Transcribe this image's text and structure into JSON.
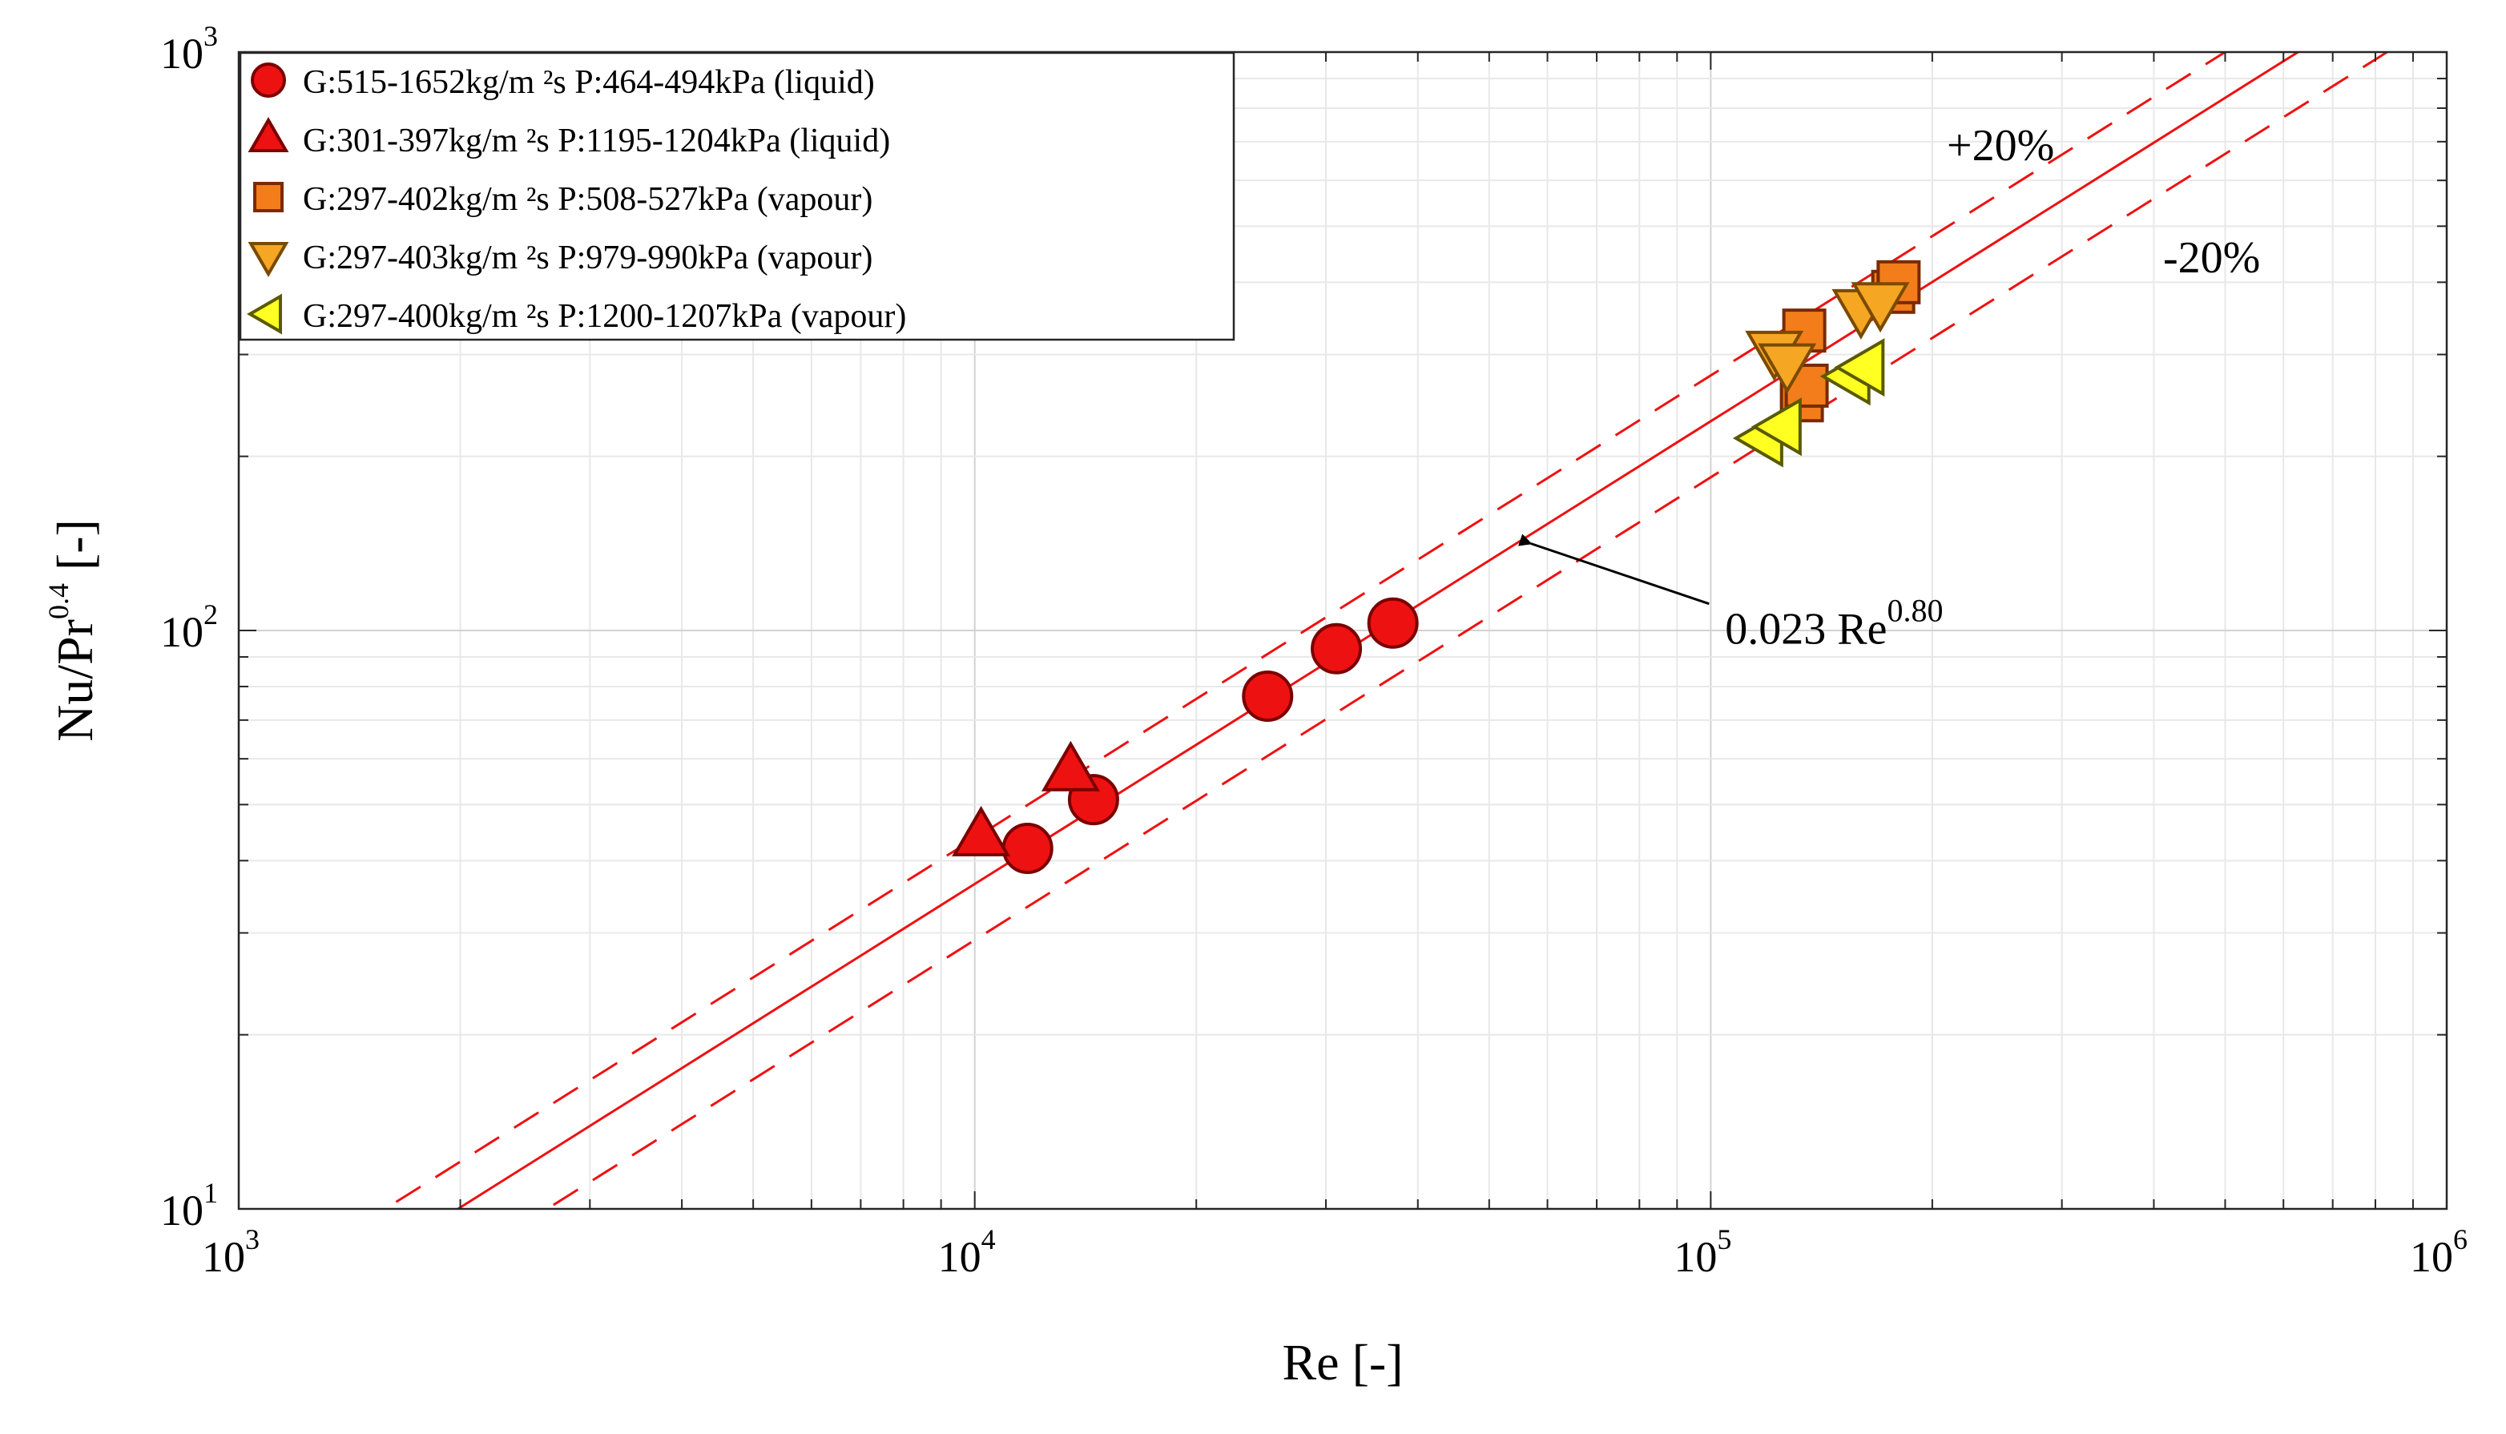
{
  "chart_data": {
    "type": "scatter",
    "x_scale": "log",
    "y_scale": "log",
    "xlabel": "Re  [-]",
    "ylabel_main": "Nu/Pr",
    "ylabel_exp": "0.4",
    "ylabel_suffix": " [-]",
    "xlim": [
      1000,
      1000000
    ],
    "ylim": [
      10,
      1000
    ],
    "grid": true,
    "legend_position": "top-left",
    "x_ticks": [
      {
        "value": 1000,
        "base": "10",
        "exp": "3"
      },
      {
        "value": 10000,
        "base": "10",
        "exp": "4"
      },
      {
        "value": 100000,
        "base": "10",
        "exp": "5"
      },
      {
        "value": 1000000,
        "base": "10",
        "exp": "6"
      }
    ],
    "y_ticks": [
      {
        "value": 10,
        "base": "10",
        "exp": "1"
      },
      {
        "value": 100,
        "base": "10",
        "exp": "2"
      },
      {
        "value": 1000,
        "base": "10",
        "exp": "3"
      }
    ],
    "series": [
      {
        "name": "G:515-1652kg/m ²s P:464-494kPa (liquid)",
        "marker": "circle",
        "color": "#ee1111",
        "edge": "#7a0000",
        "points": [
          [
            11800,
            42
          ],
          [
            14500,
            51
          ],
          [
            25000,
            77
          ],
          [
            31000,
            93
          ],
          [
            37000,
            103
          ]
        ]
      },
      {
        "name": "G:301-397kg/m ²s P:1195-1204kPa (liquid)",
        "marker": "triangle-up",
        "color": "#ee1111",
        "edge": "#7a0000",
        "points": [
          [
            10200,
            44
          ],
          [
            13500,
            57
          ]
        ]
      },
      {
        "name": "G:297-402kg/m ²s P:508-527kPa (vapour)",
        "marker": "square",
        "color": "#f27d1a",
        "edge": "#7a2a00",
        "points": [
          [
            133000,
            250
          ],
          [
            135000,
            265
          ],
          [
            134000,
            330
          ],
          [
            177000,
            385
          ],
          [
            180000,
            400
          ]
        ]
      },
      {
        "name": "G:297-403kg/m ²s P:979-990kPa (vapour)",
        "marker": "triangle-down",
        "color": "#f5a623",
        "edge": "#7a4a00",
        "points": [
          [
            122000,
            305
          ],
          [
            127000,
            290
          ],
          [
            160000,
            360
          ],
          [
            170000,
            370
          ]
        ]
      },
      {
        "name": "G:297-400kg/m ²s P:1200-1207kPa (vapour)",
        "marker": "triangle-left",
        "color": "#ffff22",
        "edge": "#5a5a00",
        "points": [
          [
            118000,
            215
          ],
          [
            125000,
            225
          ],
          [
            155000,
            275
          ],
          [
            162000,
            285
          ]
        ]
      }
    ],
    "correlation": {
      "label_main": "0.023 Re",
      "label_exp": "0.80",
      "coefficient": 0.023,
      "exponent": 0.8,
      "band_upper_label": "+20%",
      "band_lower_label": "-20%",
      "band_fraction": 0.2,
      "arrow_target": [
        55000,
        145
      ],
      "label_anchor": [
        90000,
        106
      ],
      "color": "#ee1111"
    }
  }
}
